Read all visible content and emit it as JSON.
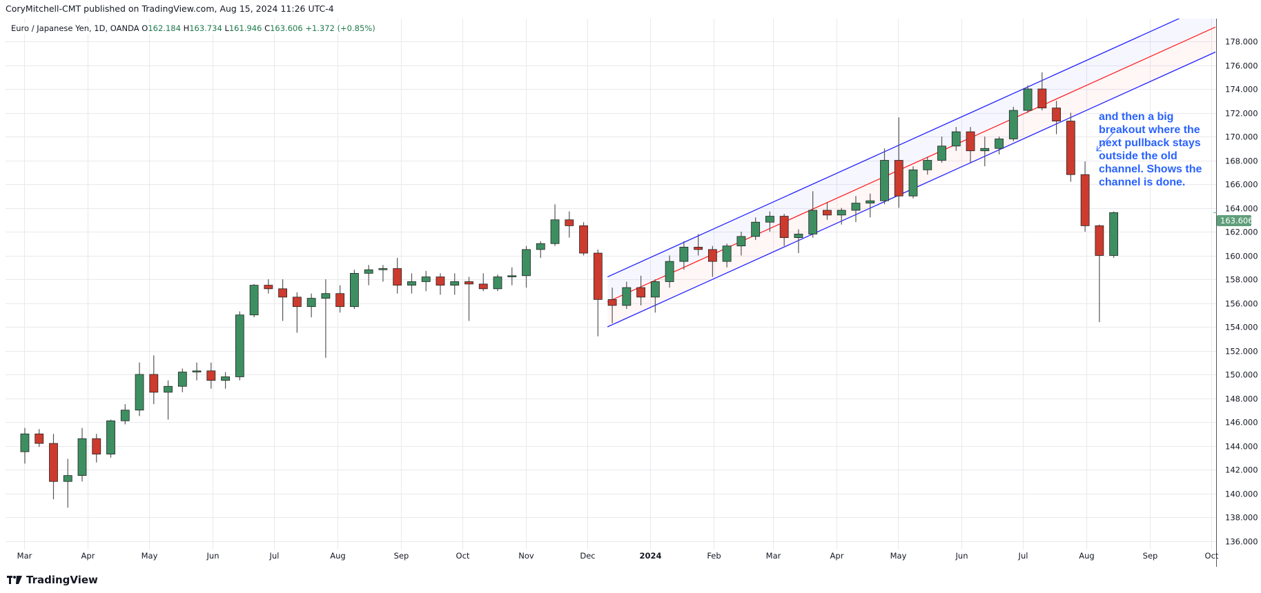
{
  "header": {
    "published": "CoryMitchell-CMT published on TradingView.com, Aug 15, 2024 11:26 UTC-4",
    "symbol": "Euro / Japanese Yen, 1D, OANDA",
    "open_label": "O",
    "open": "162.184",
    "high_label": "H",
    "high": "163.734",
    "low_label": "L",
    "low": "161.946",
    "close_label": "C",
    "close": "163.606",
    "change": "+1.372 (+0.85%)"
  },
  "footer": {
    "logo_text": "TradingView"
  },
  "colors": {
    "up": "#3d8f62",
    "down": "#cc3b2e",
    "channel_edge": "#2323ff",
    "channel_mid": "#ff2020",
    "annotation": "#2962ff",
    "price_tag": "#5f9e7a"
  },
  "chart_data": {
    "type": "candlestick",
    "title": "Euro / Japanese Yen, 1D, OANDA",
    "ylim": [
      135,
      180
    ],
    "y_ticks": [
      "136.000",
      "138.000",
      "140.000",
      "142.000",
      "144.000",
      "146.000",
      "148.000",
      "150.000",
      "152.000",
      "154.000",
      "156.000",
      "158.000",
      "160.000",
      "162.000",
      "164.000",
      "166.000",
      "168.000",
      "170.000",
      "172.000",
      "174.000",
      "176.000",
      "178.000"
    ],
    "x_range": [
      "2023-02-22",
      "2024-10-06"
    ],
    "x_ticks": [
      {
        "label": "Mar",
        "date": "2023-03-01"
      },
      {
        "label": "Apr",
        "date": "2023-04-01"
      },
      {
        "label": "May",
        "date": "2023-05-01"
      },
      {
        "label": "Jun",
        "date": "2023-06-01"
      },
      {
        "label": "Jul",
        "date": "2023-07-01"
      },
      {
        "label": "Aug",
        "date": "2023-08-01"
      },
      {
        "label": "Sep",
        "date": "2023-09-01"
      },
      {
        "label": "Oct",
        "date": "2023-10-01"
      },
      {
        "label": "Nov",
        "date": "2023-11-01"
      },
      {
        "label": "Dec",
        "date": "2023-12-01"
      },
      {
        "label": "2024",
        "date": "2024-01-01"
      },
      {
        "label": "Feb",
        "date": "2024-02-01"
      },
      {
        "label": "Mar",
        "date": "2024-03-01"
      },
      {
        "label": "Apr",
        "date": "2024-04-01"
      },
      {
        "label": "May",
        "date": "2024-05-01"
      },
      {
        "label": "Jun",
        "date": "2024-06-01"
      },
      {
        "label": "Jul",
        "date": "2024-07-01"
      },
      {
        "label": "Aug",
        "date": "2024-08-01"
      },
      {
        "label": "Sep",
        "date": "2024-09-01"
      },
      {
        "label": "Oct",
        "date": "2024-10-01"
      }
    ],
    "grid": true,
    "last_price": "163.606",
    "candles_columns": [
      "week_of",
      "open",
      "high",
      "low",
      "close"
    ],
    "candles": [
      [
        "2023-02-27",
        143.5,
        145.5,
        142.5,
        145.0
      ],
      [
        "2023-03-06",
        145.0,
        145.4,
        143.9,
        144.2
      ],
      [
        "2023-03-13",
        144.2,
        145.0,
        139.5,
        141.0
      ],
      [
        "2023-03-20",
        141.0,
        142.9,
        138.8,
        141.5
      ],
      [
        "2023-03-27",
        141.5,
        145.5,
        141.0,
        144.6
      ],
      [
        "2023-04-03",
        144.6,
        145.0,
        142.6,
        143.3
      ],
      [
        "2023-04-10",
        143.3,
        146.2,
        143.0,
        146.1
      ],
      [
        "2023-04-17",
        146.1,
        147.5,
        145.8,
        147.0
      ],
      [
        "2023-04-24",
        147.0,
        151.0,
        146.5,
        150.0
      ],
      [
        "2023-05-01",
        150.0,
        151.6,
        147.5,
        148.5
      ],
      [
        "2023-05-08",
        148.5,
        149.5,
        146.2,
        149.0
      ],
      [
        "2023-05-15",
        149.0,
        150.5,
        148.5,
        150.2
      ],
      [
        "2023-05-22",
        150.2,
        151.0,
        149.5,
        150.3
      ],
      [
        "2023-05-29",
        150.3,
        151.0,
        148.8,
        149.5
      ],
      [
        "2023-06-05",
        149.5,
        150.2,
        148.8,
        149.8
      ],
      [
        "2023-06-12",
        149.8,
        155.3,
        149.5,
        155.0
      ],
      [
        "2023-06-19",
        155.0,
        157.6,
        154.8,
        157.5
      ],
      [
        "2023-06-26",
        157.5,
        158.0,
        156.8,
        157.2
      ],
      [
        "2023-07-03",
        157.2,
        158.0,
        154.5,
        156.5
      ],
      [
        "2023-07-10",
        156.5,
        156.9,
        153.5,
        155.7
      ],
      [
        "2023-07-17",
        155.7,
        156.8,
        154.8,
        156.4
      ],
      [
        "2023-07-24",
        156.4,
        158.0,
        151.4,
        156.8
      ],
      [
        "2023-07-31",
        156.8,
        157.5,
        155.2,
        155.7
      ],
      [
        "2023-08-07",
        155.7,
        158.8,
        155.5,
        158.5
      ],
      [
        "2023-08-14",
        158.5,
        159.2,
        157.5,
        158.8
      ],
      [
        "2023-08-21",
        158.8,
        159.2,
        157.8,
        158.9
      ],
      [
        "2023-08-28",
        158.9,
        159.8,
        156.8,
        157.5
      ],
      [
        "2023-09-04",
        157.5,
        158.5,
        156.8,
        157.8
      ],
      [
        "2023-09-11",
        157.8,
        158.7,
        157.0,
        158.2
      ],
      [
        "2023-09-18",
        158.2,
        158.5,
        156.7,
        157.5
      ],
      [
        "2023-09-25",
        157.5,
        158.5,
        156.7,
        157.8
      ],
      [
        "2023-10-02",
        157.8,
        158.2,
        154.5,
        157.6
      ],
      [
        "2023-10-09",
        157.6,
        158.5,
        157.0,
        157.2
      ],
      [
        "2023-10-16",
        157.2,
        158.4,
        157.0,
        158.2
      ],
      [
        "2023-10-23",
        158.2,
        159.0,
        157.5,
        158.3
      ],
      [
        "2023-10-30",
        158.3,
        160.8,
        157.3,
        160.5
      ],
      [
        "2023-11-06",
        160.5,
        161.2,
        159.8,
        161.0
      ],
      [
        "2023-11-13",
        161.0,
        164.3,
        160.8,
        163.0
      ],
      [
        "2023-11-20",
        163.0,
        163.7,
        161.5,
        162.5
      ],
      [
        "2023-11-27",
        162.5,
        162.8,
        160.0,
        160.2
      ],
      [
        "2023-12-04",
        160.2,
        160.5,
        153.2,
        156.3
      ],
      [
        "2023-12-11",
        156.3,
        157.3,
        154.3,
        155.8
      ],
      [
        "2023-12-18",
        155.8,
        157.8,
        155.5,
        157.3
      ],
      [
        "2023-12-25",
        157.3,
        158.3,
        155.8,
        156.5
      ],
      [
        "2024-01-01",
        156.5,
        158.0,
        155.2,
        157.8
      ],
      [
        "2024-01-08",
        157.8,
        160.0,
        157.3,
        159.5
      ],
      [
        "2024-01-15",
        159.5,
        161.2,
        158.8,
        160.7
      ],
      [
        "2024-01-22",
        160.7,
        161.8,
        160.0,
        160.5
      ],
      [
        "2024-01-29",
        160.5,
        160.8,
        158.2,
        159.5
      ],
      [
        "2024-02-05",
        159.5,
        161.0,
        159.0,
        160.8
      ],
      [
        "2024-02-12",
        160.8,
        162.0,
        160.0,
        161.6
      ],
      [
        "2024-02-19",
        161.6,
        163.2,
        161.3,
        162.8
      ],
      [
        "2024-02-26",
        162.8,
        163.7,
        162.0,
        163.3
      ],
      [
        "2024-03-04",
        163.3,
        163.5,
        160.8,
        161.5
      ],
      [
        "2024-03-11",
        161.5,
        162.2,
        160.2,
        161.8
      ],
      [
        "2024-03-18",
        161.8,
        165.4,
        161.5,
        163.8
      ],
      [
        "2024-03-25",
        163.8,
        164.5,
        163.0,
        163.4
      ],
      [
        "2024-04-01",
        163.4,
        164.0,
        162.6,
        163.8
      ],
      [
        "2024-04-08",
        163.8,
        165.0,
        162.8,
        164.4
      ],
      [
        "2024-04-15",
        164.4,
        165.2,
        163.2,
        164.6
      ],
      [
        "2024-04-22",
        164.6,
        169.0,
        164.3,
        168.0
      ],
      [
        "2024-04-29",
        168.0,
        171.6,
        164.0,
        165.0
      ],
      [
        "2024-05-06",
        165.0,
        167.5,
        164.8,
        167.2
      ],
      [
        "2024-05-13",
        167.2,
        168.3,
        166.8,
        168.0
      ],
      [
        "2024-05-20",
        168.0,
        170.0,
        167.8,
        169.2
      ],
      [
        "2024-05-27",
        169.2,
        170.8,
        168.8,
        170.4
      ],
      [
        "2024-06-03",
        170.4,
        170.8,
        167.8,
        168.8
      ],
      [
        "2024-06-10",
        168.8,
        170.0,
        167.5,
        169.0
      ],
      [
        "2024-06-17",
        169.0,
        170.0,
        168.5,
        169.8
      ],
      [
        "2024-06-24",
        169.8,
        172.5,
        169.6,
        172.2
      ],
      [
        "2024-07-01",
        172.2,
        174.3,
        172.0,
        174.0
      ],
      [
        "2024-07-08",
        174.0,
        175.4,
        172.2,
        172.4
      ],
      [
        "2024-07-15",
        172.4,
        173.0,
        170.2,
        171.3
      ],
      [
        "2024-07-22",
        171.3,
        172.0,
        166.2,
        166.8
      ],
      [
        "2024-07-29",
        166.8,
        167.9,
        162.0,
        162.5
      ],
      [
        "2024-08-05",
        162.5,
        162.6,
        154.4,
        160.0
      ],
      [
        "2024-08-12",
        160.0,
        163.7,
        159.8,
        163.606
      ]
    ],
    "channel": {
      "start_date": "2023-12-11",
      "end_date": "2024-10-03",
      "mid_start": 156.1,
      "mid_end": 179.2,
      "half_width": 2.1
    },
    "annotation": {
      "lines": [
        "and then a big",
        "breakout where the",
        "next pullback stays",
        "outside the old",
        "channel. Shows the",
        "channel is done."
      ],
      "arrow_from": {
        "date": "2024-08-14",
        "price": 170.3
      },
      "arrow_to": {
        "date": "2024-08-06",
        "price": 168.8
      }
    }
  }
}
